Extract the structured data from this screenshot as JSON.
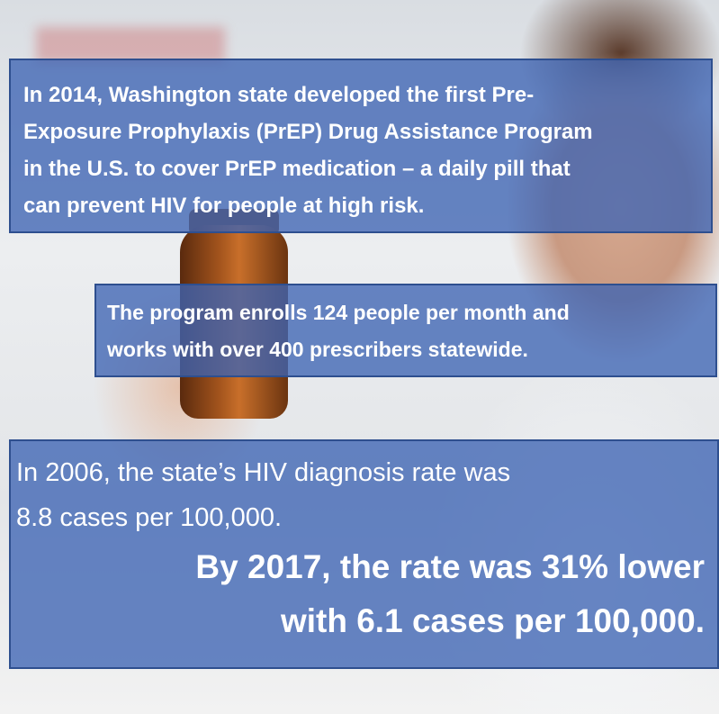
{
  "panels": [
    {
      "lines": [
        "In 2014, Washington state developed the first Pre-",
        "Exposure Prophylaxis (PrEP) Drug Assistance Program",
        "in the U.S. to cover PrEP medication – a daily pill that",
        "can prevent HIV for people at high risk."
      ]
    },
    {
      "lines": [
        "The program enrolls 124 people per month and",
        "works with over 400 prescribers statewide."
      ]
    },
    {
      "lines": [
        "In 2006, the state’s HIV diagnosis rate was",
        "8.8 cases per 100,000."
      ],
      "emphasis": [
        "By 2017, the rate was 31% lower",
        "with 6.1 cases per 100,000."
      ]
    }
  ]
}
